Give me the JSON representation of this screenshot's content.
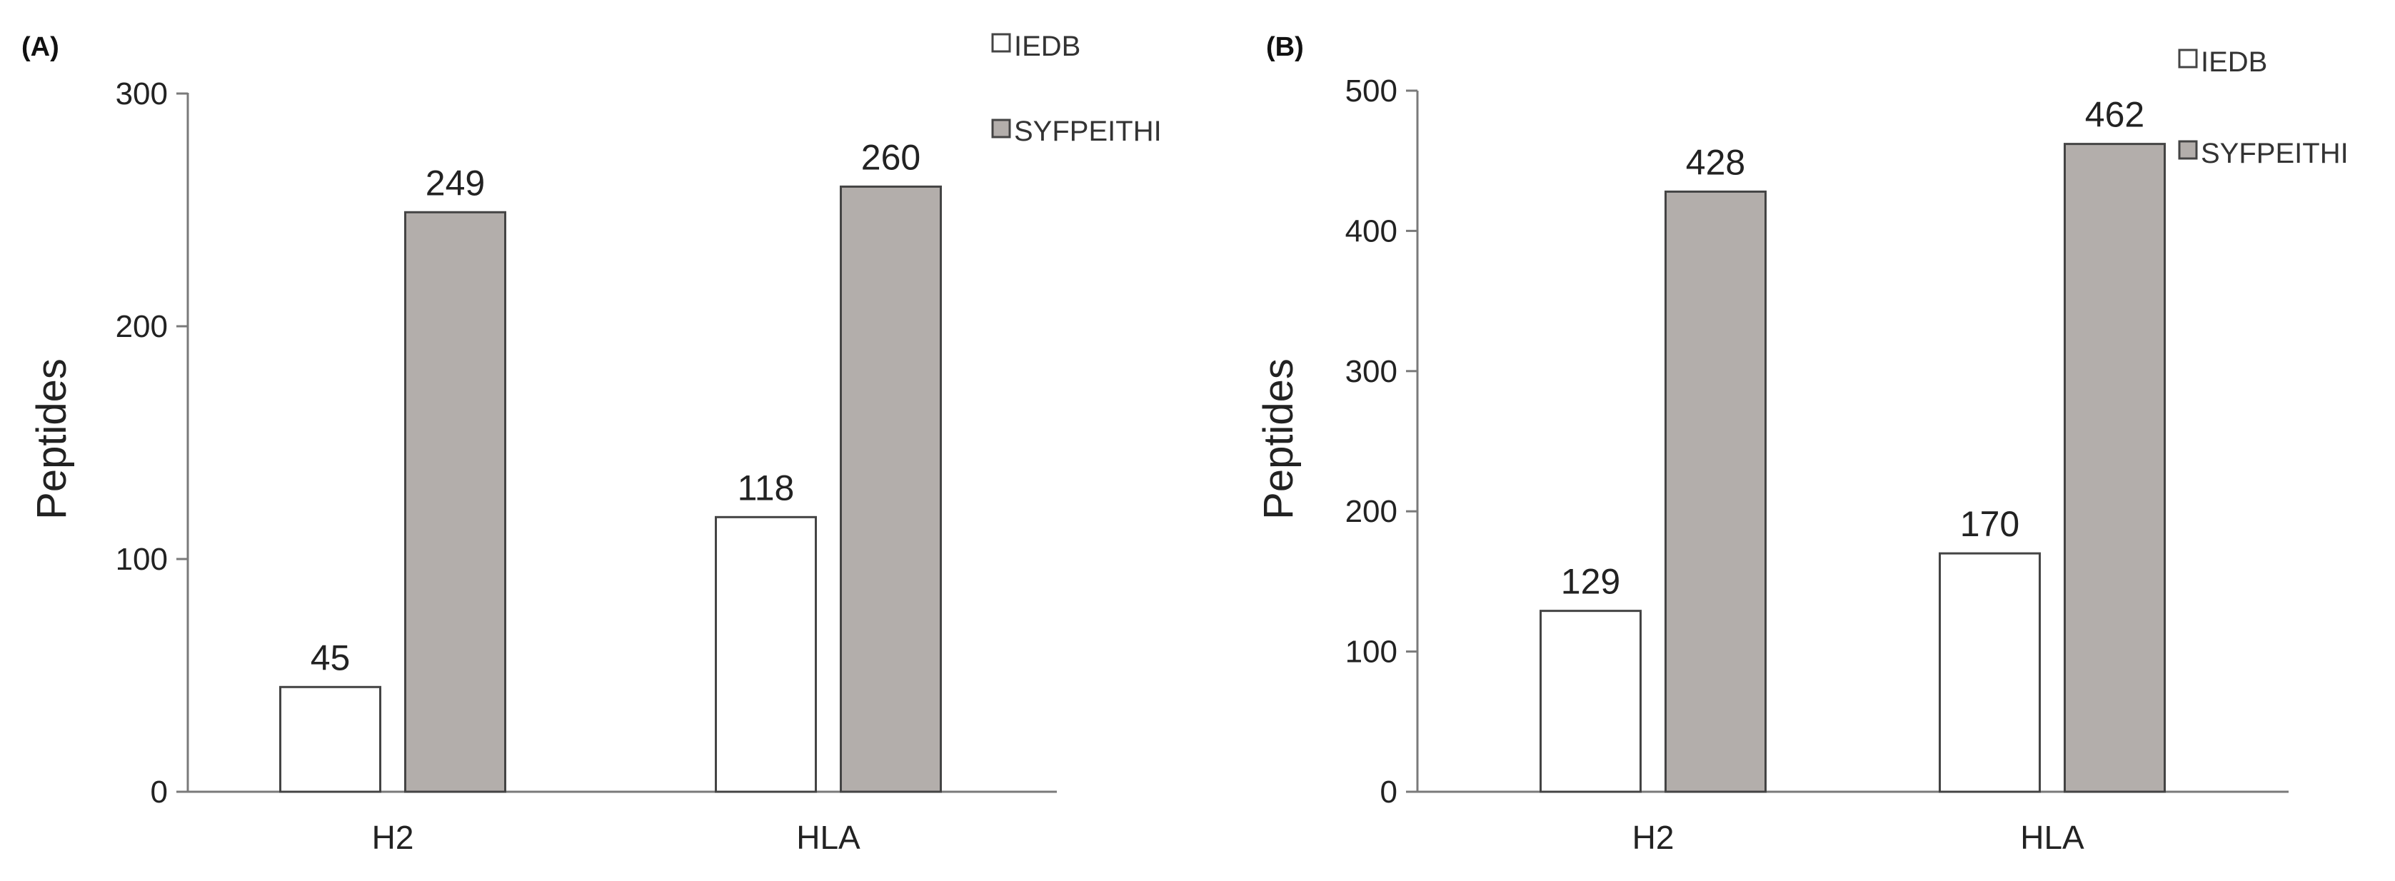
{
  "colors": {
    "iedb": "#ffffff",
    "syfpeithi": "#b3aeab",
    "axis": "#7a7a7a",
    "text": "#222222"
  },
  "chart_data": [
    {
      "type": "bar",
      "panel_label": "(A)",
      "categories": [
        "H2",
        "HLA"
      ],
      "series": [
        {
          "name": "IEDB",
          "values": [
            45,
            118
          ]
        },
        {
          "name": "SYFPEITHI",
          "values": [
            249,
            260
          ]
        }
      ],
      "ylabel": "Peptides",
      "xlabel": "",
      "ylim": [
        0,
        300
      ],
      "yticks": [
        0,
        100,
        200,
        300
      ],
      "grid": false,
      "legend": "top-right"
    },
    {
      "type": "bar",
      "panel_label": "(B)",
      "categories": [
        "H2",
        "HLA"
      ],
      "series": [
        {
          "name": "IEDB",
          "values": [
            129,
            170
          ]
        },
        {
          "name": "SYFPEITHI",
          "values": [
            428,
            462
          ]
        }
      ],
      "ylabel": "Peptides",
      "xlabel": "",
      "ylim": [
        0,
        500
      ],
      "yticks": [
        0,
        100,
        200,
        300,
        400,
        500
      ],
      "grid": false,
      "legend": "top-right"
    }
  ]
}
